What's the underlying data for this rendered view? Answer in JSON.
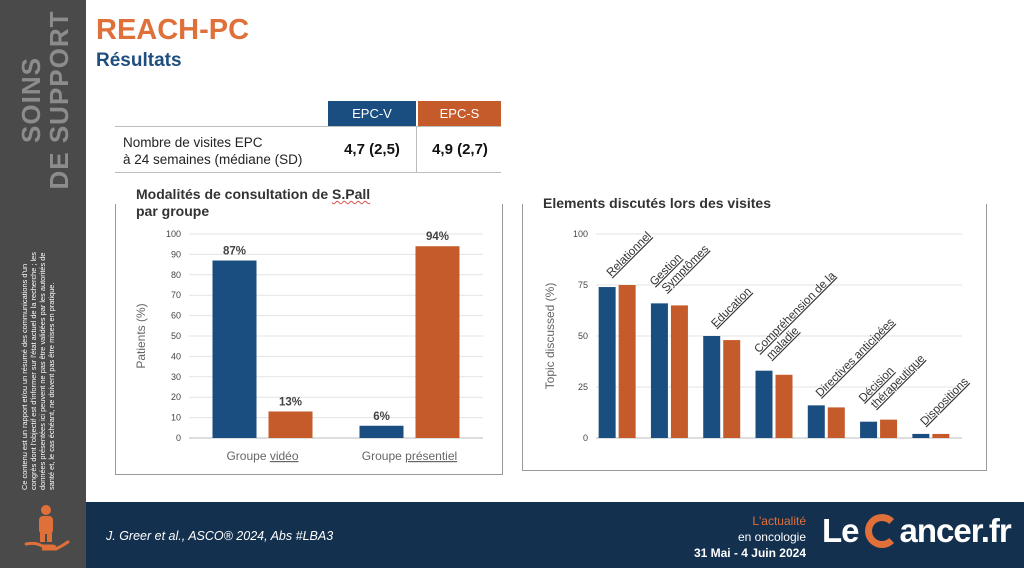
{
  "sidebar": {
    "section_title": "SOINS\nDE SUPPORT",
    "disclaimer": "Ce contenu est un rapport et/ou un résumé des communications d'un congrès dont l'objectif est d'informer sur l'état actuel de la recherche ; les données présentées ici peuvent ne pas être validées par les autorités de santé et, le cas échéant, ne doivent pas être mises en pratique.",
    "icon": "person-hand-icon"
  },
  "header": {
    "title": "REACH-PC",
    "subtitle": "Résultats"
  },
  "visits_table": {
    "columns": [
      "EPC-V",
      "EPC-S"
    ],
    "row_label_line1": "Nombre de visites EPC",
    "row_label_line2": "à 24 semaines (médiane (SD)",
    "values": [
      "4,7 (2,5)",
      "4,9 (2,7)"
    ]
  },
  "colors": {
    "video": "#1a4e80",
    "presentiel": "#c55a2b",
    "accent": "#e0703a",
    "footer_bg": "#14304f"
  },
  "chart_data": [
    {
      "type": "bar",
      "title_line1": "Modalités de consultation de ",
      "title_highlight": "S.Pall",
      "title_line2": "par groupe",
      "ylabel": "Patients (%)",
      "ylim": [
        0,
        100
      ],
      "yticks": [
        0,
        10,
        20,
        30,
        40,
        50,
        60,
        70,
        80,
        90,
        100
      ],
      "categories": [
        "Groupe vidéo",
        "Groupe présentiel"
      ],
      "category_parts": [
        [
          "Groupe ",
          "vidéo"
        ],
        [
          "Groupe ",
          "présentiel"
        ]
      ],
      "series": [
        {
          "values": [
            87,
            6
          ],
          "labels": [
            "87%",
            "6%"
          ]
        },
        {
          "values": [
            13,
            94
          ],
          "labels": [
            "13%",
            "94%"
          ]
        }
      ],
      "grid": true
    },
    {
      "type": "bar",
      "title": "Elements discutés lors des visites",
      "ylabel": "Topic discussed (%)",
      "ylim": [
        0,
        100
      ],
      "yticks": [
        0,
        25,
        50,
        75,
        100
      ],
      "categories": [
        "Relationnel",
        "Gestion Symptômes",
        "Education",
        "Compréhension de la maladie",
        "Directives anticipées",
        "Décision thérapeutique",
        "Dispositions"
      ],
      "category_lines": [
        [
          "Relationnel"
        ],
        [
          "Gestion",
          "Symptômes"
        ],
        [
          "Education"
        ],
        [
          "Compréhension de la",
          "maladie"
        ],
        [
          "Directives anticipées"
        ],
        [
          "Décision",
          "thérapeutique"
        ],
        [
          "Dispositions"
        ]
      ],
      "series": [
        {
          "values": [
            74,
            66,
            50,
            33,
            16,
            8,
            2
          ]
        },
        {
          "values": [
            75,
            65,
            48,
            31,
            15,
            9,
            2
          ]
        }
      ],
      "grid": true
    }
  ],
  "footer": {
    "reference": "J. Greer et al., ASCO® 2024, Abs #LBA3",
    "tagline1": "L'actualité",
    "tagline2": "en oncologie",
    "dates": "31 Mai - 4 Juin 2024",
    "brand_le": "Le",
    "brand_rest": "ancer.fr"
  }
}
